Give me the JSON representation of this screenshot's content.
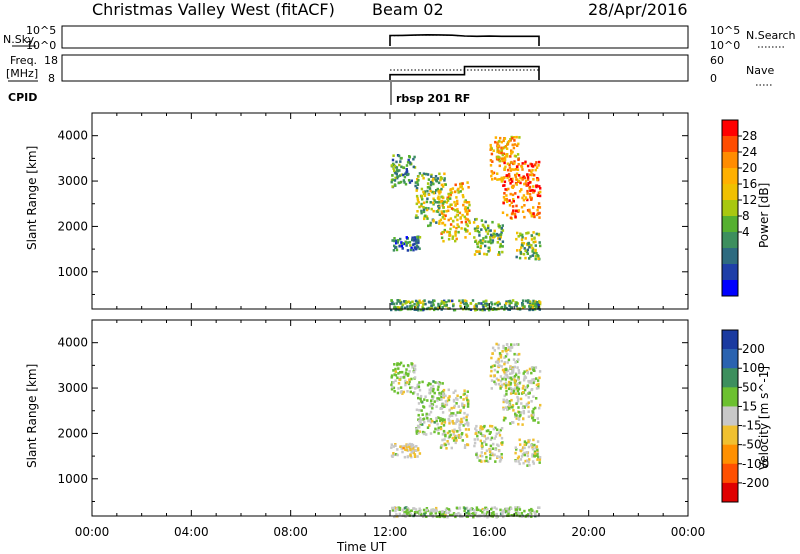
{
  "header": {
    "title": "Christmas Valley West (fitACF)",
    "beam": "Beam 02",
    "date": "28/Apr/2016"
  },
  "time_axis": {
    "label": "Time UT",
    "ticks": [
      "00:00",
      "04:00",
      "08:00",
      "12:00",
      "16:00",
      "20:00",
      "00:00"
    ]
  },
  "sky_panel": {
    "left_label": "N.Sky",
    "right_label": "N.Search",
    "left_ticks": [
      "10^5",
      "10^0"
    ],
    "right_ticks": [
      "10^5",
      "10^0"
    ]
  },
  "freq_panel": {
    "left_label_line1": "Freq.",
    "left_label_line2": "[MHz]",
    "right_label": "Nave",
    "left_ticks": [
      "18",
      "8"
    ],
    "right_ticks": [
      "60",
      "0"
    ]
  },
  "cpid": {
    "label": "CPID",
    "program": "rbsp 201 RF"
  },
  "power_colorbar": {
    "label": "Power [dB]",
    "ticks": [
      "28",
      "24",
      "20",
      "16",
      "12",
      "8",
      "4"
    ],
    "colors": [
      "#ff0000",
      "#ff4d00",
      "#ff8c00",
      "#ffb000",
      "#f0c000",
      "#a8c810",
      "#55b030",
      "#3d8f5e",
      "#2e6b80",
      "#1f3fa8",
      "#0000ff"
    ]
  },
  "velocity_colorbar": {
    "label": "Velocity [m s^-1]",
    "ticks": [
      "200",
      "100",
      "50",
      "15",
      "-15",
      "-50",
      "-100",
      "-200"
    ],
    "colors": [
      "#1a3aa0",
      "#2a63b0",
      "#3d8f5e",
      "#6cc030",
      "#c8c8c8",
      "#f0c030",
      "#ff9000",
      "#ff5000",
      "#e00000"
    ]
  },
  "chart_data": [
    {
      "type": "line",
      "panel": "N.Sky / N.Search",
      "x": [
        "12:00",
        "12:30",
        "13:00",
        "13:30",
        "14:00",
        "14:30",
        "15:00",
        "15:30",
        "16:00",
        "16:30",
        "17:00",
        "17:30",
        "18:00"
      ],
      "series": [
        {
          "name": "N.Sky",
          "values": [
            800,
            900,
            1100,
            1300,
            1200,
            1000,
            600,
            500,
            550,
            500,
            500,
            500,
            500
          ]
        },
        {
          "name": "N.Search",
          "values": [
            700,
            800,
            1000,
            1100,
            1100,
            900,
            550,
            450,
            500,
            450,
            450,
            450,
            450
          ]
        }
      ],
      "yscale": "log",
      "ylim": [
        1,
        100000
      ]
    },
    {
      "type": "line",
      "panel": "Freq. / Nave",
      "x": [
        "12:00",
        "15:00",
        "15:00",
        "18:00"
      ],
      "series": [
        {
          "name": "Freq.",
          "values": [
            10.2,
            10.2,
            13.6,
            13.6
          ]
        },
        {
          "name": "Nave",
          "values": [
            25,
            25,
            25,
            25
          ]
        }
      ],
      "ylim": [
        8,
        18
      ]
    },
    {
      "type": "heatmap",
      "panel": "Power",
      "xlabel": "Time UT",
      "ylabel": "Slant Range [km]",
      "ylim": [
        180,
        4500
      ],
      "yticks": [
        1000,
        2000,
        3000,
        4000
      ],
      "value_label": "Power [dB]",
      "clim": [
        0,
        32
      ],
      "features": [
        {
          "t_start": "12:00",
          "t_end": "13:00",
          "r_start": 2900,
          "r_end": 3600,
          "value": 10
        },
        {
          "t_start": "13:00",
          "t_end": "14:10",
          "r_start": 2000,
          "r_end": 3200,
          "value": 14
        },
        {
          "t_start": "14:00",
          "t_end": "15:10",
          "r_start": 1700,
          "r_end": 3000,
          "value": 20
        },
        {
          "t_start": "15:20",
          "t_end": "16:30",
          "r_start": 1400,
          "r_end": 2200,
          "value": 14
        },
        {
          "t_start": "16:00",
          "t_end": "17:10",
          "r_start": 3000,
          "r_end": 4000,
          "value": 22
        },
        {
          "t_start": "16:30",
          "t_end": "18:00",
          "r_start": 2200,
          "r_end": 3500,
          "value": 26
        },
        {
          "t_start": "17:00",
          "t_end": "18:00",
          "r_start": 1300,
          "r_end": 1900,
          "value": 14
        },
        {
          "t_start": "12:00",
          "t_end": "13:10",
          "r_start": 1500,
          "r_end": 1800,
          "value": 8
        },
        {
          "t_start": "12:00",
          "t_end": "18:00",
          "r_start": 180,
          "r_end": 400,
          "value": 12
        }
      ]
    },
    {
      "type": "heatmap",
      "panel": "Velocity",
      "xlabel": "Time UT",
      "ylabel": "Slant Range [km]",
      "ylim": [
        180,
        4500
      ],
      "yticks": [
        1000,
        2000,
        3000,
        4000
      ],
      "value_label": "Velocity [m s^-1]",
      "clim": [
        -250,
        250
      ],
      "features": [
        {
          "t_start": "12:00",
          "t_end": "13:00",
          "r_start": 2900,
          "r_end": 3600,
          "value": 20
        },
        {
          "t_start": "13:00",
          "t_end": "14:10",
          "r_start": 2000,
          "r_end": 3200,
          "value": 30
        },
        {
          "t_start": "14:00",
          "t_end": "15:10",
          "r_start": 1700,
          "r_end": 3000,
          "value": 0
        },
        {
          "t_start": "15:20",
          "t_end": "16:30",
          "r_start": 1400,
          "r_end": 2200,
          "value": 0
        },
        {
          "t_start": "16:00",
          "t_end": "17:10",
          "r_start": 3000,
          "r_end": 4000,
          "value": 0
        },
        {
          "t_start": "16:30",
          "t_end": "18:00",
          "r_start": 2200,
          "r_end": 3500,
          "value": 10
        },
        {
          "t_start": "17:00",
          "t_end": "18:00",
          "r_start": 1300,
          "r_end": 1900,
          "value": 0
        },
        {
          "t_start": "12:00",
          "t_end": "13:10",
          "r_start": 1500,
          "r_end": 1800,
          "value": -30
        },
        {
          "t_start": "12:00",
          "t_end": "18:00",
          "r_start": 180,
          "r_end": 400,
          "value": 30
        }
      ]
    }
  ]
}
